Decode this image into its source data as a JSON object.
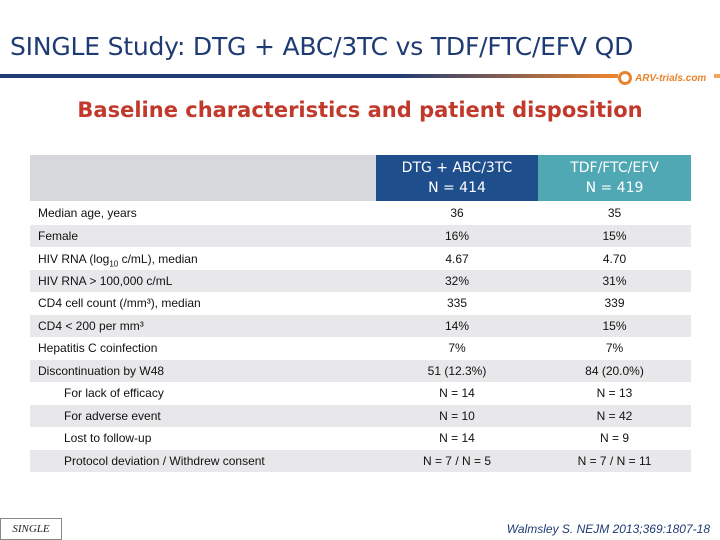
{
  "slide": {
    "title": "SINGLE Study: DTG + ABC/3TC vs TDF/FTC/EFV QD",
    "subtitle": "Baseline characteristics and patient disposition",
    "logo_text": "ARV-trials.com",
    "footer_tag": "SINGLE",
    "citation": "Walmsley S. NEJM 2013;369:1807-18"
  },
  "table": {
    "col1_name": "DTG + ABC/3TC",
    "col1_n": "N = 414",
    "col2_name": "TDF/FTC/EFV",
    "col2_n": "N = 419",
    "rows": [
      {
        "label": "Median age, years",
        "v1": "36",
        "v2": "35"
      },
      {
        "label": "Female",
        "v1": "16%",
        "v2": "15%"
      },
      {
        "label_pre": "HIV RNA (log",
        "label_sub": "10",
        "label_post": " c/mL), median",
        "v1": "4.67",
        "v2": "4.70"
      },
      {
        "label": "HIV RNA > 100,000 c/mL",
        "v1": "32%",
        "v2": "31%"
      },
      {
        "label": "CD4 cell count (/mm³), median",
        "v1": "335",
        "v2": "339"
      },
      {
        "label": "CD4 < 200 per mm³",
        "v1": "14%",
        "v2": "15%"
      },
      {
        "label": "Hepatitis C coinfection",
        "v1": "7%",
        "v2": "7%"
      },
      {
        "label": "Discontinuation by W48",
        "v1": "51 (12.3%)",
        "v2": "84 (20.0%)"
      },
      {
        "label": "For lack of efficacy",
        "v1": "N = 14",
        "v2": "N = 13"
      },
      {
        "label": "For adverse event",
        "v1": "N = 10",
        "v2": "N = 42"
      },
      {
        "label": "Lost to follow-up",
        "v1": "N = 14",
        "v2": "N = 9"
      },
      {
        "label": "Protocol deviation / Withdrew consent",
        "v1": "N = 7 / N = 5",
        "v2": "N = 7 / N = 11"
      }
    ]
  }
}
